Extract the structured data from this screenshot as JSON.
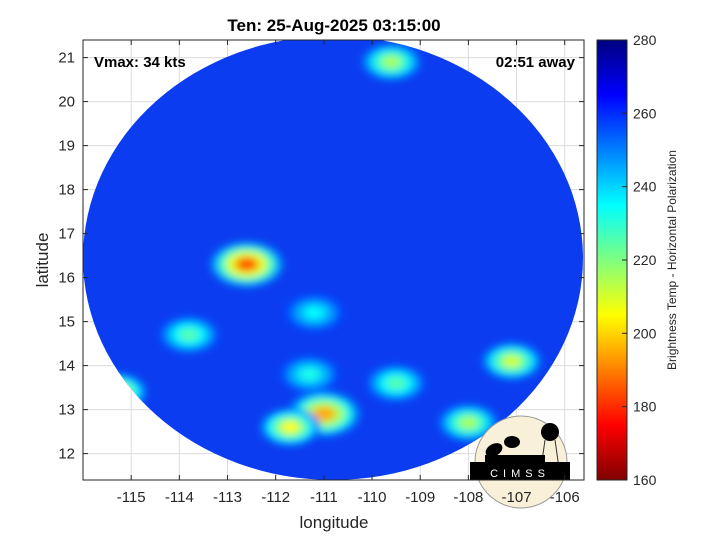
{
  "chart_data": {
    "type": "heatmap",
    "title": "Ten: 25-Aug-2025 03:15:00",
    "annotations": {
      "left": "Vmax: 34 kts",
      "right": "02:51 away"
    },
    "xlabel": "longitude",
    "ylabel": "latitude",
    "xlim": [
      -116.0,
      -105.6
    ],
    "ylim": [
      11.4,
      21.4
    ],
    "xticks": [
      -115,
      -114,
      -113,
      -112,
      -111,
      -110,
      -109,
      -108,
      -107,
      -106
    ],
    "xtick_labels": [
      "-115",
      "-114",
      "-113",
      "-112",
      "-111",
      "-110",
      "-109",
      "-108",
      "-107",
      "-106"
    ],
    "yticks": [
      12,
      13,
      14,
      15,
      16,
      17,
      18,
      19,
      20,
      21
    ],
    "ytick_labels": [
      "12",
      "13",
      "14",
      "15",
      "16",
      "17",
      "18",
      "19",
      "20",
      "21"
    ],
    "grid": true,
    "colorbar": {
      "label": "Brightness Temp - Horizontal Polarization",
      "range": [
        160,
        280
      ],
      "ticks": [
        160,
        180,
        200,
        220,
        240,
        260,
        280
      ],
      "tick_labels": [
        "160",
        "180",
        "200",
        "220",
        "240",
        "260",
        "280"
      ],
      "colormap": "jet",
      "placement": "right"
    },
    "background_value": 262,
    "features": [
      {
        "lon": -112.6,
        "lat": 16.3,
        "value": 185
      },
      {
        "lon": -111.0,
        "lat": 12.9,
        "value": 195
      },
      {
        "lon": -111.7,
        "lat": 12.6,
        "value": 205
      },
      {
        "lon": -115.3,
        "lat": 13.4,
        "value": 205
      },
      {
        "lon": -113.8,
        "lat": 14.7,
        "value": 225
      },
      {
        "lon": -107.1,
        "lat": 14.1,
        "value": 210
      },
      {
        "lon": -108.0,
        "lat": 12.7,
        "value": 215
      },
      {
        "lon": -109.5,
        "lat": 13.6,
        "value": 225
      },
      {
        "lon": -111.2,
        "lat": 15.2,
        "value": 235
      },
      {
        "lon": -111.3,
        "lat": 13.8,
        "value": 232
      },
      {
        "lon": -109.6,
        "lat": 20.9,
        "value": 215
      }
    ]
  },
  "logo": {
    "text": "CIMSS"
  },
  "colors": {
    "background_disk": "#0b3cf0",
    "axes": "#262626",
    "grid": "#dcdcdc",
    "logo_bg": "#f8f0d8"
  }
}
